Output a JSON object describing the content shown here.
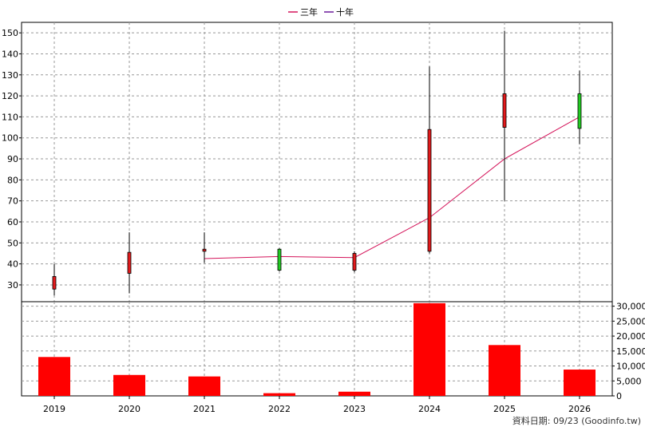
{
  "chart_data": {
    "type": "candlestick+volume",
    "legend": [
      {
        "label": "三年",
        "color": "#d4145a"
      },
      {
        "label": "十年",
        "color": "#6a1b9a"
      }
    ],
    "categories": [
      "2019",
      "2020",
      "2021",
      "2022",
      "2023",
      "2024",
      "2025",
      "2026"
    ],
    "candles": [
      {
        "year": "2019",
        "open": 28,
        "close": 34,
        "high": 40,
        "low": 25,
        "color": "#e31a1c"
      },
      {
        "year": "2020",
        "open": 35.5,
        "close": 45.5,
        "high": 55,
        "low": 26,
        "color": "#e31a1c"
      },
      {
        "year": "2021",
        "open": 46,
        "close": 47,
        "high": 55,
        "low": 40.5,
        "color": "#e31a1c"
      },
      {
        "year": "2022",
        "open": 47,
        "close": 37,
        "high": 47.5,
        "low": 36.5,
        "color": "#22cc22"
      },
      {
        "year": "2023",
        "open": 37,
        "close": 45,
        "high": 46,
        "low": 36,
        "color": "#e31a1c"
      },
      {
        "year": "2024",
        "open": 46,
        "close": 104,
        "high": 134,
        "low": 45,
        "color": "#e31a1c"
      },
      {
        "year": "2025",
        "open": 105,
        "close": 121,
        "high": 151,
        "low": 70,
        "color": "#e31a1c"
      },
      {
        "year": "2026",
        "open": 121,
        "close": 104.5,
        "high": 132,
        "low": 97,
        "color": "#22cc22"
      }
    ],
    "line_three_year": [
      {
        "year": "2021",
        "value": 42.5
      },
      {
        "year": "2022",
        "value": 43.5
      },
      {
        "year": "2023",
        "value": 43
      },
      {
        "year": "2024",
        "value": 62
      },
      {
        "year": "2025",
        "value": 90
      },
      {
        "year": "2026",
        "value": 110
      }
    ],
    "price_axis": {
      "min": 22,
      "max": 155,
      "ticks": [
        30,
        40,
        50,
        60,
        70,
        80,
        90,
        100,
        110,
        120,
        130,
        140,
        150
      ]
    },
    "volume": [
      {
        "year": "2019",
        "value": 13000
      },
      {
        "year": "2020",
        "value": 7000
      },
      {
        "year": "2021",
        "value": 6500
      },
      {
        "year": "2022",
        "value": 900
      },
      {
        "year": "2023",
        "value": 1400
      },
      {
        "year": "2024",
        "value": 31000
      },
      {
        "year": "2025",
        "value": 17000
      },
      {
        "year": "2026",
        "value": 8800
      }
    ],
    "volume_axis": {
      "min": 0,
      "max": 31500,
      "ticks": [
        "0",
        "5,000",
        "10,000",
        "15,000",
        "20,000",
        "25,000",
        "30,000"
      ]
    },
    "grid": true
  },
  "footer": {
    "source": "資料日期: 09/23 (Goodinfo.tw)"
  }
}
